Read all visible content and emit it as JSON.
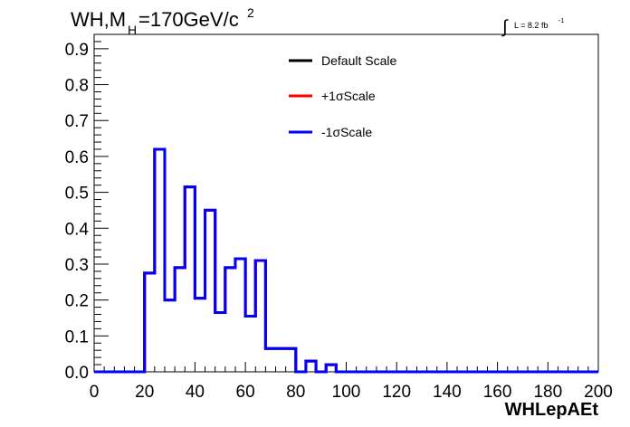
{
  "chart_data": {
    "type": "line",
    "title_main": "WH,M",
    "title_sub": "H",
    "title_mass": "=170GeV/c",
    "title_sup": "2",
    "lumi_integral": "∫",
    "lumi_text": "L = 8.2 fb",
    "lumi_sup": "-1",
    "xlabel": "WHLepAEt",
    "ylabel": "",
    "xlim": [
      0,
      200
    ],
    "ylim": [
      0,
      0.95
    ],
    "x_ticks": [
      "0",
      "20",
      "40",
      "60",
      "80",
      "100",
      "120",
      "140",
      "160",
      "180",
      "200"
    ],
    "y_ticks": [
      "0.0",
      "0.1",
      "0.2",
      "0.3",
      "0.4",
      "0.5",
      "0.6",
      "0.7",
      "0.8",
      "0.9"
    ],
    "bin_edges": [
      0,
      4,
      8,
      12,
      16,
      20,
      24,
      28,
      32,
      36,
      40,
      44,
      48,
      52,
      56,
      60,
      64,
      68,
      72,
      76,
      80,
      84,
      88,
      92,
      96,
      100,
      104,
      108,
      112,
      116,
      120,
      124,
      128,
      132,
      136,
      140,
      144,
      148,
      152,
      156,
      160,
      164,
      168,
      172,
      176,
      180,
      184,
      188,
      192,
      196,
      200
    ],
    "series": [
      {
        "name": "Default Scale",
        "color": "#000000",
        "values": [
          0,
          0,
          0,
          0,
          0,
          0.275,
          0.62,
          0.2,
          0.29,
          0.515,
          0.205,
          0.45,
          0.165,
          0.29,
          0.315,
          0.155,
          0.31,
          0.065,
          0.065,
          0.065,
          0,
          0.03,
          0,
          0.02,
          0,
          0,
          0,
          0,
          0,
          0,
          0,
          0,
          0,
          0,
          0,
          0,
          0,
          0,
          0,
          0,
          0,
          0,
          0,
          0,
          0,
          0,
          0,
          0,
          0,
          0
        ]
      },
      {
        "name": "+1σScale",
        "color": "#ff0000",
        "values": [
          0,
          0,
          0,
          0,
          0,
          0.275,
          0.62,
          0.2,
          0.29,
          0.515,
          0.205,
          0.45,
          0.165,
          0.29,
          0.315,
          0.155,
          0.31,
          0.065,
          0.065,
          0.065,
          0,
          0.03,
          0,
          0.02,
          0,
          0,
          0,
          0,
          0,
          0,
          0,
          0,
          0,
          0,
          0,
          0,
          0,
          0,
          0,
          0,
          0,
          0,
          0,
          0,
          0,
          0,
          0,
          0,
          0,
          0
        ]
      },
      {
        "name": "-1σScale",
        "color": "#0000ff",
        "values": [
          0,
          0,
          0,
          0,
          0,
          0.275,
          0.62,
          0.2,
          0.29,
          0.515,
          0.205,
          0.45,
          0.165,
          0.29,
          0.315,
          0.155,
          0.31,
          0.065,
          0.065,
          0.065,
          0,
          0.03,
          0,
          0.02,
          0,
          0,
          0,
          0,
          0,
          0,
          0,
          0,
          0,
          0,
          0,
          0,
          0,
          0,
          0,
          0,
          0,
          0,
          0,
          0,
          0,
          0,
          0,
          0,
          0,
          0
        ]
      }
    ],
    "legend_position": "top-center",
    "grid": false
  }
}
